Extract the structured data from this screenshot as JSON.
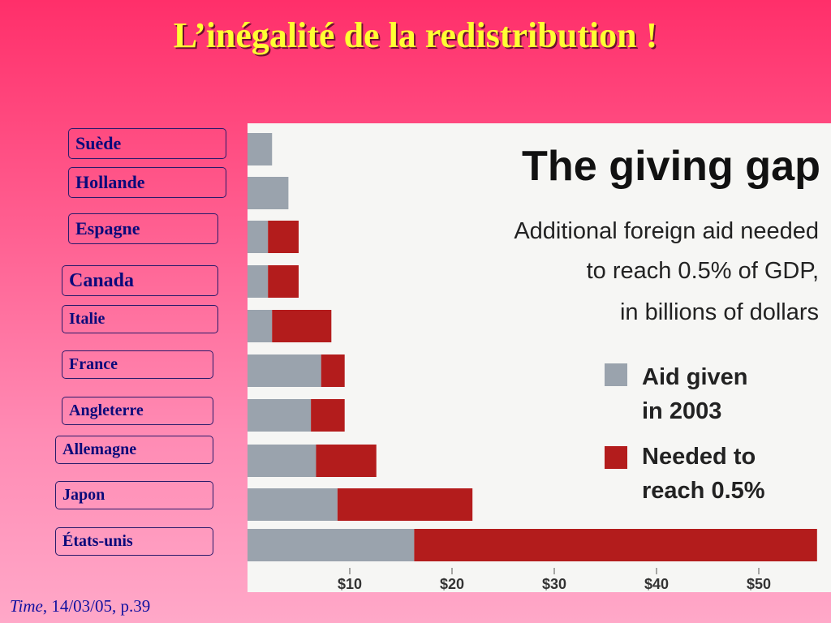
{
  "slide": {
    "title": "L’inégalité de la redistribution !",
    "caption_source": "Time",
    "caption_rest": ", 14/03/05, p.39"
  },
  "countries": [
    "Suède",
    "Hollande",
    "Espagne",
    "Canada",
    "Italie",
    "France",
    "Angleterre",
    "Allemagne",
    "Japon",
    "États-unis"
  ],
  "chart_data": {
    "type": "bar",
    "orientation": "horizontal",
    "stacked": true,
    "title": "The giving gap",
    "subtitle": [
      "Additional foreign aid needed",
      "to reach 0.5% of GDP,",
      "in billions of dollars"
    ],
    "categories": [
      "Suède",
      "Hollande",
      "Espagne",
      "Canada",
      "Italie",
      "France",
      "Angleterre",
      "Allemagne",
      "Japon",
      "États-unis"
    ],
    "series": [
      {
        "name": "Aid given in 2003",
        "color": "#9aa3ad",
        "values": [
          2.4,
          4.0,
          2.0,
          2.0,
          2.4,
          7.2,
          6.2,
          6.7,
          8.8,
          16.3
        ]
      },
      {
        "name": "Needed to reach 0.5%",
        "color": "#b31c1c",
        "values": [
          0,
          0,
          3.0,
          3.0,
          5.8,
          2.3,
          3.3,
          5.9,
          13.2,
          39.4
        ]
      }
    ],
    "legend": [
      "Aid given",
      "in 2003",
      "Needed to",
      "reach 0.5%"
    ],
    "xticks": [
      "$10",
      "$20",
      "$30",
      "$40",
      "$50"
    ],
    "xtick_values": [
      10,
      20,
      30,
      40,
      50
    ],
    "xlim": [
      0,
      56
    ],
    "grid": false,
    "legend_position": "right"
  }
}
